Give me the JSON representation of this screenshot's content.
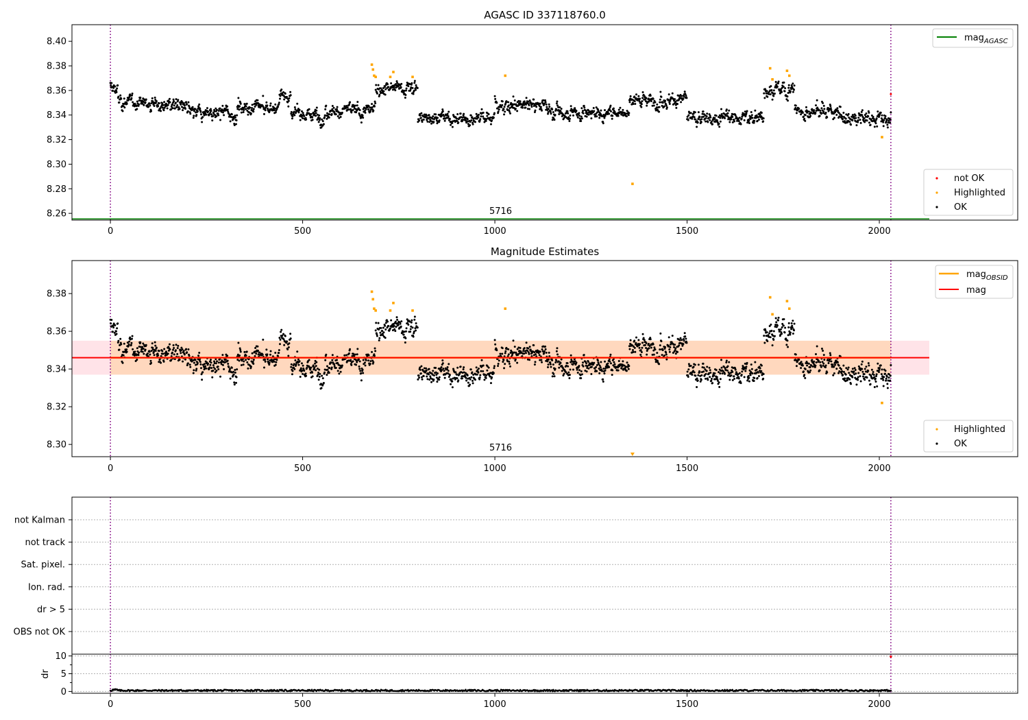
{
  "colors": {
    "ok": "#000000",
    "highlighted": "#ffa500",
    "not_ok": "#ff0000",
    "agasc_line": "#008000",
    "mag_line": "#ff0000",
    "mag_obsid": "#ffa500",
    "band": "#ffc0cb",
    "obsid_marker": "#800080"
  },
  "chart_data": [
    {
      "type": "scatter",
      "title": "AGASC ID 337118760.0",
      "xlim": [
        -100,
        2360
      ],
      "ylim": [
        8.2545,
        8.4135
      ],
      "xticks": [
        0,
        500,
        1000,
        1500,
        2000
      ],
      "xtick_labels": [
        "0",
        "500",
        "1000",
        "1500",
        "2000"
      ],
      "yticks": [
        8.26,
        8.28,
        8.3,
        8.32,
        8.34,
        8.36,
        8.38,
        8.4
      ],
      "ytick_labels": [
        "8.26",
        "8.28",
        "8.30",
        "8.32",
        "8.34",
        "8.36",
        "8.38",
        "8.40"
      ],
      "obsid_boundaries": [
        0,
        2030
      ],
      "obsid_labels": [
        {
          "x": 1015,
          "text": "5716"
        }
      ],
      "mag_agasc": 8.2555,
      "mag_agasc_xrange": [
        -100,
        2130
      ],
      "series": [
        {
          "name": "not OK",
          "color": "#ff0000",
          "points": [
            [
              2030,
              8.357
            ]
          ]
        },
        {
          "name": "Highlighted",
          "color": "#ffa500",
          "points": [
            [
              680,
              8.381
            ],
            [
              683,
              8.377
            ],
            [
              686,
              8.372
            ],
            [
              690,
              8.371
            ],
            [
              728,
              8.371
            ],
            [
              736,
              8.375
            ],
            [
              786,
              8.371
            ],
            [
              1027,
              8.372
            ],
            [
              1358,
              8.284
            ],
            [
              1716,
              8.378
            ],
            [
              1722,
              8.369
            ],
            [
              1760,
              8.376
            ],
            [
              1766,
              8.372
            ],
            [
              2007,
              8.322
            ]
          ]
        },
        {
          "name": "OK",
          "color": "#000000",
          "points": "approx. 2030 samples, index 0–2030, mag ≈ 8.32–8.37"
        }
      ],
      "legends": [
        {
          "position": "top-right",
          "entries": [
            "mag_AGASC"
          ]
        },
        {
          "position": "lower-right",
          "entries": [
            "not OK",
            "Highlighted",
            "OK"
          ]
        }
      ]
    },
    {
      "type": "scatter",
      "title": "Magnitude Estimates",
      "xlim": [
        -100,
        2360
      ],
      "ylim": [
        8.2935,
        8.3975
      ],
      "xticks": [
        0,
        500,
        1000,
        1500,
        2000
      ],
      "xtick_labels": [
        "0",
        "500",
        "1000",
        "1500",
        "2000"
      ],
      "yticks": [
        8.3,
        8.32,
        8.34,
        8.36,
        8.38
      ],
      "ytick_labels": [
        "8.30",
        "8.32",
        "8.34",
        "8.36",
        "8.38"
      ],
      "obsid_boundaries": [
        0,
        2030
      ],
      "obsid_labels": [
        {
          "x": 1015,
          "text": "5716"
        }
      ],
      "mag_mean": 8.346,
      "mag_band": [
        8.337,
        8.355
      ],
      "mag_obsid": 8.346,
      "mag_obsid_band": [
        8.337,
        8.355
      ],
      "line_xrange_mag": [
        -100,
        2130
      ],
      "line_xrange_obsid": [
        0,
        2030
      ],
      "off_scale_marker": {
        "x": 1358,
        "label": "Highlighted below range"
      },
      "series": [
        {
          "name": "Highlighted",
          "color": "#ffa500",
          "points": [
            [
              680,
              8.381
            ],
            [
              683,
              8.377
            ],
            [
              686,
              8.372
            ],
            [
              690,
              8.371
            ],
            [
              728,
              8.371
            ],
            [
              736,
              8.375
            ],
            [
              786,
              8.371
            ],
            [
              1027,
              8.372
            ],
            [
              1716,
              8.378
            ],
            [
              1722,
              8.369
            ],
            [
              1760,
              8.376
            ],
            [
              1766,
              8.372
            ],
            [
              2007,
              8.322
            ]
          ]
        },
        {
          "name": "OK",
          "color": "#000000",
          "points": "same as panel 1"
        }
      ],
      "legends": [
        {
          "position": "top-right",
          "entries": [
            "mag_OBSID",
            "mag"
          ]
        },
        {
          "position": "lower-right",
          "entries": [
            "Highlighted",
            "OK"
          ]
        }
      ]
    },
    {
      "type": "flags",
      "categories": [
        "not Kalman",
        "not track",
        "Sat. pixel.",
        "Ion. rad.",
        "dr > 5",
        "OBS not OK"
      ],
      "xlim": [
        -100,
        2360
      ],
      "obsid_boundaries": [
        0,
        2030
      ],
      "flagged_points": []
    },
    {
      "type": "line",
      "ylabel": "dr",
      "xlim": [
        -100,
        2360
      ],
      "ylim": [
        -0.5,
        10.5
      ],
      "yticks": [
        0,
        5,
        10
      ],
      "ytick_labels": [
        "0",
        "5",
        "10"
      ],
      "minor_yticks": [
        2.5,
        7.5
      ],
      "xticks": [
        0,
        500,
        1000,
        1500,
        2000
      ],
      "xtick_labels": [
        "0",
        "500",
        "1000",
        "1500",
        "2000"
      ],
      "obsid_boundaries": [
        0,
        2030
      ],
      "dr_range": [
        0.05,
        0.5
      ],
      "outlier": [
        2030,
        9.8
      ]
    }
  ],
  "legend_labels": {
    "not_ok": "not OK",
    "highlighted": "Highlighted",
    "ok": "OK",
    "mag_agasc_base": "mag",
    "mag_agasc_sub": "AGASC",
    "mag_obsid_base": "mag",
    "mag_obsid_sub": "OBSID",
    "mag": "mag"
  }
}
